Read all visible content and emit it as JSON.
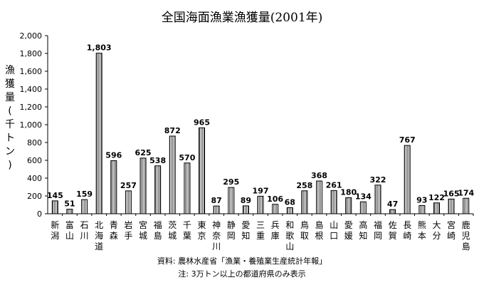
{
  "chart_data": {
    "type": "bar",
    "title": "全国海面漁業漁獲量(2001年)",
    "ylabel": "漁獲量 (千トン)",
    "ylim": [
      0,
      2000
    ],
    "yticks": [
      "0",
      "200",
      "400",
      "600",
      "800",
      "1,000",
      "1,200",
      "1,400",
      "1,600",
      "1,800",
      "2,000"
    ],
    "categories": [
      "新潟",
      "富山",
      "石川",
      "北海道",
      "青森",
      "岩手",
      "宮城",
      "福島",
      "茨城",
      "千葉",
      "東京",
      "神奈川",
      "静岡",
      "愛知",
      "三重",
      "兵庫",
      "和歌山",
      "鳥取",
      "島根",
      "山口",
      "愛媛",
      "高知",
      "福岡",
      "佐賀",
      "長崎",
      "熊本",
      "大分",
      "宮崎",
      "鹿児島"
    ],
    "values": [
      145,
      51,
      159,
      1803,
      596,
      257,
      625,
      538,
      872,
      570,
      965,
      87,
      295,
      89,
      197,
      106,
      68,
      258,
      368,
      261,
      180,
      134,
      322,
      47,
      767,
      93,
      122,
      165,
      174
    ],
    "value_labels": [
      "145",
      "51",
      "159",
      "1,803",
      "596",
      "257",
      "625",
      "538",
      "872",
      "570",
      "965",
      "87",
      "295",
      "89",
      "197",
      "106",
      "68",
      "258",
      "368",
      "261",
      "180",
      "134",
      "322",
      "47",
      "767",
      "93",
      "122",
      "165",
      "174"
    ],
    "grid": false,
    "legend": "none",
    "bar_fill": "dense vertical hatching (dark gray)"
  },
  "notes": {
    "source": "資料: 農林水産省「漁業・養殖業生産統計年報」",
    "footnote": "注: 3万トン以上の都道府県のみ表示"
  },
  "colors": {
    "bar_fill": "#808080",
    "bar_stroke": "#000000",
    "axis": "#000000"
  }
}
